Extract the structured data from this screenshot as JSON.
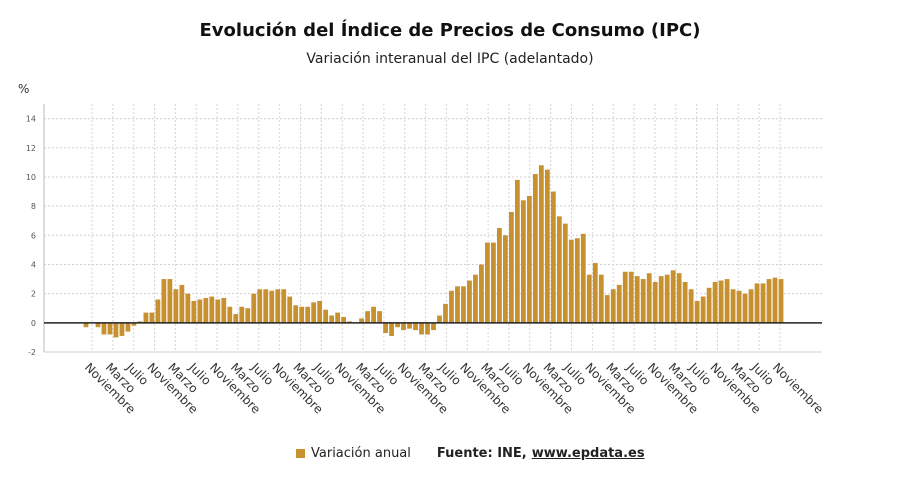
{
  "chart_data": {
    "type": "bar",
    "title": "Evolución del Índice de Precios de Consumo (IPC)",
    "subtitle": "Variación interanual del IPC (adelantado)",
    "ylabel": "%",
    "ylim": [
      -2,
      15
    ],
    "yticks": [
      -2,
      0,
      2,
      4,
      6,
      8,
      10,
      12,
      14
    ],
    "grid": true,
    "legend_position": "bottom",
    "bar_color": "#c8912f",
    "x_tick_labels": [
      "Noviembre",
      "Marzo",
      "Julio",
      "Noviembre",
      "Marzo",
      "Julio",
      "Noviembre",
      "Marzo",
      "Julio",
      "Noviembre",
      "Marzo",
      "Julio",
      "Noviembre",
      "Marzo",
      "Julio",
      "Noviembre",
      "Marzo",
      "Julio",
      "Noviembre",
      "Marzo",
      "Julio",
      "Noviembre",
      "Marzo",
      "Julio",
      "Noviembre",
      "Marzo",
      "Julio",
      "Noviembre",
      "Marzo",
      "Julio",
      "Noviembre",
      "Marzo",
      "Julio",
      "Noviembre"
    ],
    "series": [
      {
        "name": "Variación anual",
        "values": [
          -0.3,
          0,
          -0.3,
          -0.8,
          -0.8,
          -1.0,
          -0.9,
          -0.6,
          -0.2,
          0.1,
          0.7,
          0.7,
          1.6,
          3.0,
          3.0,
          2.3,
          2.6,
          2.0,
          1.5,
          1.6,
          1.7,
          1.8,
          1.6,
          1.7,
          1.1,
          0.6,
          1.1,
          1.0,
          2.0,
          2.3,
          2.3,
          2.2,
          2.3,
          2.3,
          1.8,
          1.2,
          1.1,
          1.1,
          1.4,
          1.5,
          0.9,
          0.5,
          0.7,
          0.4,
          0.1,
          0.0,
          0.3,
          0.8,
          1.1,
          0.8,
          -0.7,
          -0.9,
          -0.3,
          -0.5,
          -0.4,
          -0.5,
          -0.8,
          -0.8,
          -0.5,
          0.5,
          1.3,
          2.2,
          2.5,
          2.5,
          2.9,
          3.3,
          4.0,
          5.5,
          5.5,
          6.5,
          6.0,
          7.6,
          9.8,
          8.4,
          8.7,
          10.2,
          10.8,
          10.5,
          9.0,
          7.3,
          6.8,
          5.7,
          5.8,
          6.1,
          3.3,
          4.1,
          3.3,
          1.9,
          2.3,
          2.6,
          3.5,
          3.5,
          3.2,
          3.0,
          3.4,
          2.8,
          3.2,
          3.3,
          3.6,
          3.4,
          2.8,
          2.3,
          1.5,
          1.8,
          2.4,
          2.8,
          2.9,
          3.0,
          2.3,
          2.2,
          2.0,
          2.3,
          2.7,
          2.7,
          3.0,
          3.1,
          3.0
        ]
      }
    ]
  },
  "legend": {
    "label": "Variación anual"
  },
  "source": {
    "label": "Fuente: INE,",
    "link": "www.epdata.es"
  }
}
